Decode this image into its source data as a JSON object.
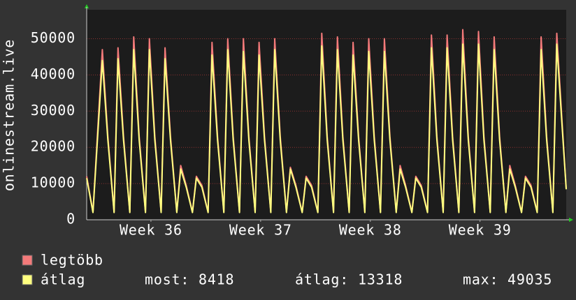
{
  "chart_data": {
    "type": "line",
    "ylabel": "onlinestream.live",
    "xlim": [
      0,
      30.6
    ],
    "xticks": [
      {
        "value": 4.1,
        "label": "Week 36"
      },
      {
        "value": 11.1,
        "label": "Week 37"
      },
      {
        "value": 18.1,
        "label": "Week 38"
      },
      {
        "value": 25.1,
        "label": "Week 39"
      }
    ],
    "ylim": [
      0,
      58000
    ],
    "yticks": [
      0,
      10000,
      20000,
      30000,
      40000,
      50000
    ],
    "grid": true,
    "x": [
      0,
      0.4,
      1,
      1.35,
      1.75,
      2,
      2.35,
      2.75,
      3,
      3.35,
      3.75,
      4,
      4.35,
      4.75,
      5,
      5.35,
      5.75,
      6,
      6.35,
      6.75,
      7,
      7.35,
      7.75,
      8,
      8.35,
      8.75,
      9,
      9.35,
      9.75,
      10,
      10.35,
      10.75,
      11,
      11.35,
      11.75,
      12,
      12.35,
      12.75,
      13,
      13.35,
      13.75,
      14,
      14.35,
      14.75,
      15,
      15.35,
      15.75,
      16,
      16.35,
      16.75,
      17,
      17.35,
      17.75,
      18,
      18.35,
      18.75,
      19,
      19.35,
      19.75,
      20,
      20.35,
      20.75,
      21,
      21.35,
      21.75,
      22,
      22.35,
      22.75,
      23,
      23.35,
      23.75,
      24,
      24.35,
      24.75,
      25,
      25.35,
      25.75,
      26,
      26.35,
      26.75,
      27,
      27.35,
      27.75,
      28,
      28.35,
      28.75,
      29,
      29.35,
      29.75,
      30,
      30.35,
      30.6
    ],
    "series": [
      {
        "name": "legtöbb",
        "color": "#f47a7a",
        "values": [
          12000,
          2100,
          47000,
          23000,
          2100,
          47500,
          23000,
          2100,
          50500,
          23000,
          2100,
          50000,
          23000,
          2100,
          47500,
          23000,
          2100,
          15000,
          9500,
          2100,
          12000,
          9500,
          2100,
          49000,
          23000,
          2100,
          50000,
          23000,
          2100,
          50000,
          23000,
          2100,
          49000,
          23000,
          2100,
          50000,
          23000,
          2100,
          14500,
          9500,
          2100,
          12000,
          9500,
          2100,
          51500,
          23000,
          2100,
          50500,
          23000,
          2100,
          49000,
          23000,
          2100,
          50000,
          23000,
          2100,
          50000,
          23000,
          2100,
          15000,
          9500,
          2100,
          12000,
          9500,
          2100,
          51000,
          23000,
          2100,
          51000,
          23000,
          2100,
          52500,
          23000,
          2100,
          52000,
          23000,
          2100,
          50500,
          23000,
          2100,
          15000,
          9500,
          2100,
          12000,
          9500,
          2100,
          50500,
          23000,
          2100,
          51500,
          26000,
          8600
        ]
      },
      {
        "name": "átlag",
        "color": "#ffff80",
        "values": [
          11500,
          2000,
          44000,
          22000,
          2000,
          44500,
          22000,
          2000,
          47000,
          22000,
          2000,
          47000,
          22000,
          2000,
          44500,
          22000,
          2000,
          14000,
          9000,
          2000,
          11500,
          9000,
          2000,
          45500,
          22000,
          2000,
          47000,
          22000,
          2000,
          46500,
          22000,
          2000,
          45500,
          22000,
          2000,
          47000,
          22000,
          2000,
          14000,
          9000,
          2000,
          11500,
          9000,
          2000,
          48000,
          22000,
          2000,
          47000,
          22000,
          2000,
          45500,
          22000,
          2000,
          46500,
          22000,
          2000,
          46500,
          22000,
          2000,
          14000,
          9000,
          2000,
          11500,
          9000,
          2000,
          47500,
          22000,
          2000,
          47500,
          22000,
          2000,
          48500,
          22000,
          2000,
          48500,
          22000,
          2000,
          47000,
          22000,
          2000,
          14000,
          9000,
          2000,
          11500,
          9000,
          2000,
          47000,
          22000,
          2000,
          48500,
          25000,
          8418
        ]
      }
    ],
    "stats": [
      {
        "label": "most:",
        "value": 8418
      },
      {
        "label": "átlag:",
        "value": 13318
      },
      {
        "label": "max:",
        "value": 49035
      }
    ]
  }
}
